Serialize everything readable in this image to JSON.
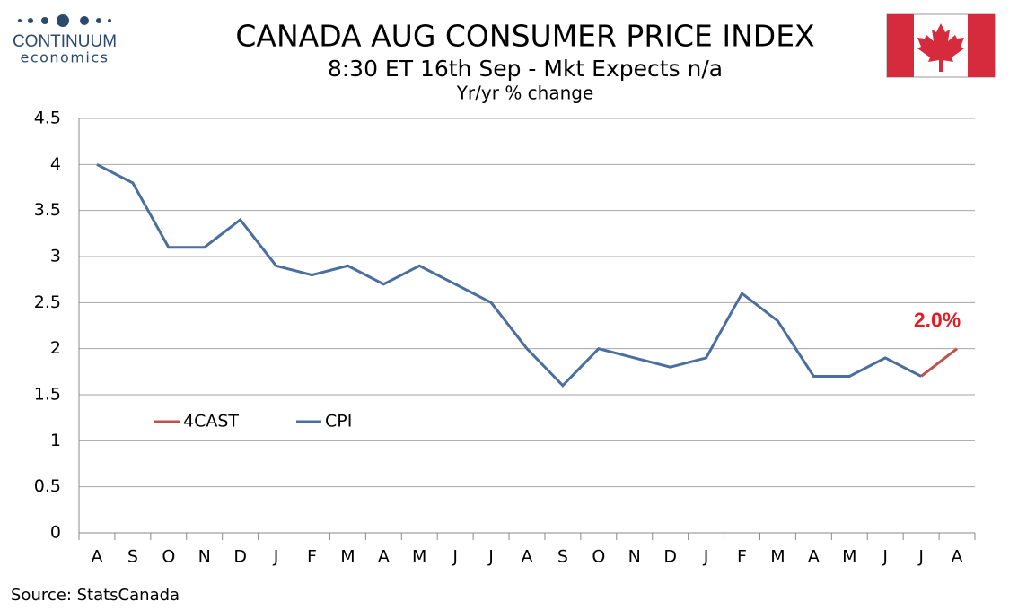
{
  "logo": {
    "name": "CONTINUUM",
    "tagline": "economics"
  },
  "source": "Source: StatsCanada",
  "chart_data": {
    "type": "line",
    "title": "CANADA AUG CONSUMER PRICE INDEX",
    "subtitle": "8:30 ET 16th Sep - Mkt Expects n/a",
    "y_label": "Yr/yr % change",
    "categories": [
      "A",
      "S",
      "O",
      "N",
      "D",
      "J",
      "F",
      "M",
      "A",
      "M",
      "J",
      "J",
      "A",
      "S",
      "O",
      "N",
      "D",
      "J",
      "F",
      "M",
      "A",
      "M",
      "J",
      "J",
      "A"
    ],
    "series": [
      {
        "name": "4CAST",
        "color": "#c0504d",
        "values": [
          null,
          null,
          null,
          null,
          null,
          null,
          null,
          null,
          null,
          null,
          null,
          null,
          null,
          null,
          null,
          null,
          null,
          null,
          null,
          null,
          null,
          null,
          null,
          1.7,
          2.0
        ],
        "value_labels": [
          null,
          null,
          null,
          null,
          null,
          null,
          null,
          null,
          null,
          null,
          null,
          null,
          null,
          null,
          null,
          null,
          null,
          null,
          null,
          null,
          null,
          null,
          null,
          null,
          "2.0%"
        ]
      },
      {
        "name": "CPI",
        "color": "#4a6f9e",
        "values": [
          4.0,
          3.8,
          3.1,
          3.1,
          3.4,
          2.9,
          2.8,
          2.9,
          2.7,
          2.9,
          2.7,
          2.5,
          2.0,
          1.6,
          2.0,
          1.9,
          1.8,
          1.9,
          2.6,
          2.3,
          1.7,
          1.7,
          1.9,
          1.7,
          null
        ]
      }
    ],
    "ylim": [
      0,
      4.5
    ],
    "yticks": [
      0,
      0.5,
      1,
      1.5,
      2,
      2.5,
      3,
      3.5,
      4,
      4.5
    ],
    "grid": true,
    "legend": "inside-left"
  }
}
